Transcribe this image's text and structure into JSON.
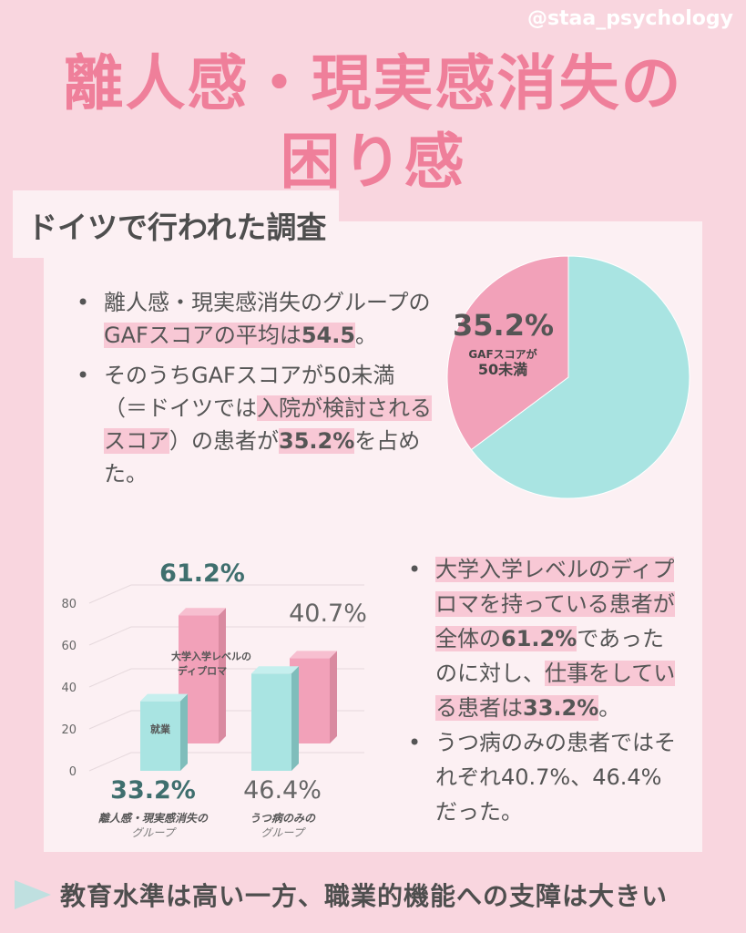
{
  "handle": "@staa_psychology",
  "title_line1": "離人感・現実感消失の",
  "title_line2": "困り感",
  "subtitle": "ドイツで行われた調査",
  "bullets_top": [
    {
      "pre": "離人感・現実感消失のグループの",
      "hl": "GAFスコアの平均は",
      "bold": "54.5",
      "post": "。"
    },
    {
      "pre": "そのうちGAFスコアが50未満（＝ドイツでは",
      "hl": "入院が検討されるスコア",
      "mid": "）の患者が",
      "bold": "35.2%",
      "post": "を占めた。"
    }
  ],
  "bullets_bottom": [
    {
      "hl": "大学入学レベルのディプロマを持っている患者が全体の",
      "bold": "61.2%",
      "mid": "であったのに対し、",
      "hl2": "仕事をしている患者は",
      "bold2": "33.2%",
      "post": "。"
    },
    {
      "text": "うつ病のみの患者ではそれぞれ40.7%、46.4%だった。"
    }
  ],
  "bottom_text": "教育水準は高い一方、職業的機能への支障は大きい",
  "colors": {
    "pink": "#f2a1b9",
    "teal": "#a9e4e2",
    "accent": "#ef7f9a"
  },
  "chart_data": [
    {
      "type": "pie",
      "slices": [
        {
          "label": "GAFスコアが50未満",
          "value": 35.2,
          "color": "#f2a1b9"
        },
        {
          "label": "",
          "value": 64.8,
          "color": "#a9e4e2"
        }
      ],
      "annotation": "35.2%"
    },
    {
      "type": "bar",
      "categories": [
        "離人感・現実感消失のグループ",
        "うつ病のみのグループ"
      ],
      "series": [
        {
          "name": "就業",
          "values": [
            33.2,
            46.4
          ],
          "labels": [
            "33.2%",
            "46.4%"
          ],
          "color": "#a9e4e2"
        },
        {
          "name": "大学入学レベルのディプロマ",
          "values": [
            61.2,
            40.7
          ],
          "labels": [
            "61.2%",
            "40.7%"
          ],
          "color": "#f2a1b9"
        }
      ],
      "yticks": [
        0,
        20,
        40,
        60,
        80
      ],
      "ylim": [
        0,
        80
      ]
    }
  ]
}
